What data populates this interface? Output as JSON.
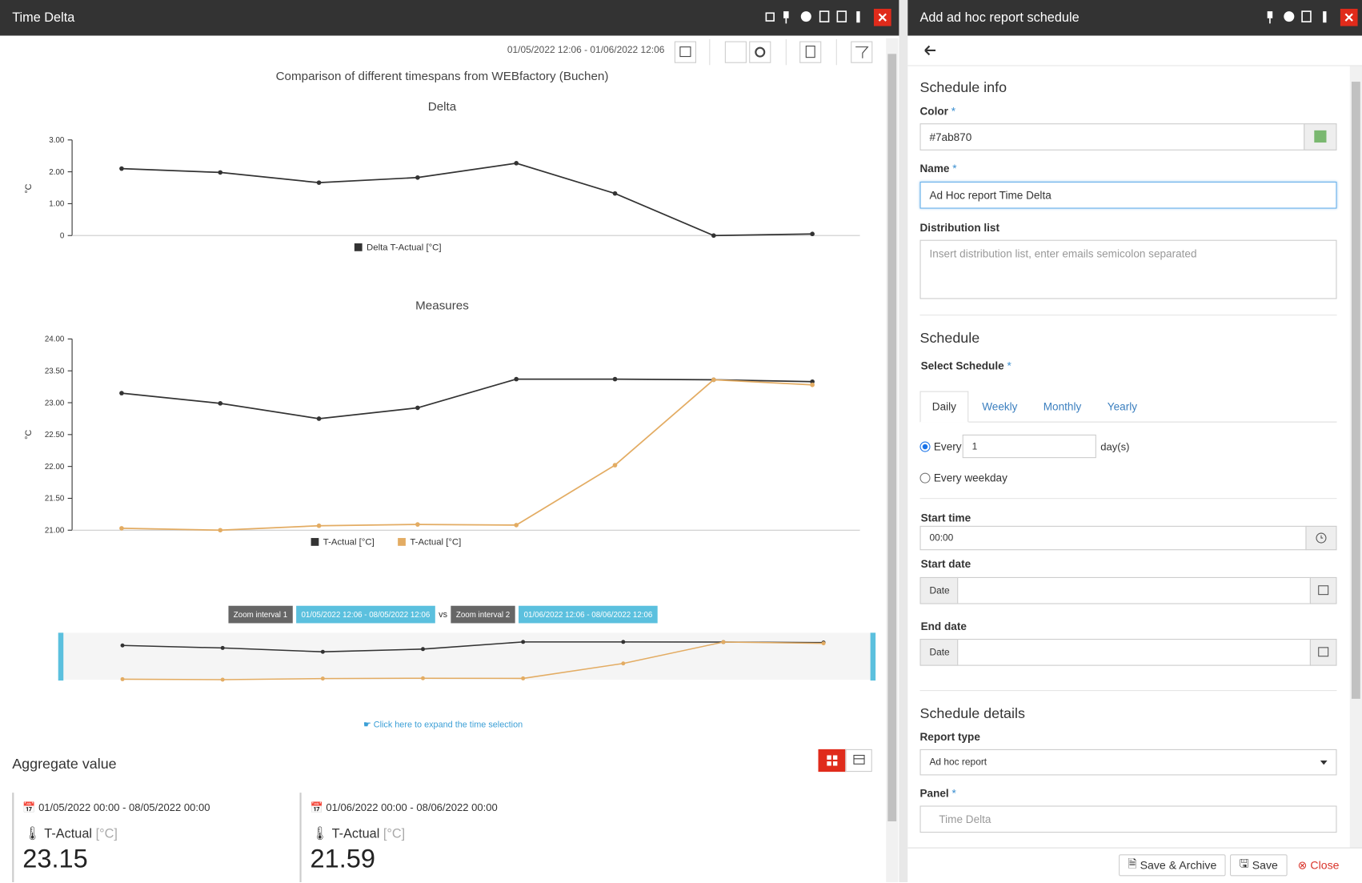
{
  "left_panel": {
    "title": "Time Delta",
    "date_range": "01/05/2022 12:06 - 01/06/2022 12:06",
    "chart_title": "Comparison of different timespans from WEBfactory (Buchen)",
    "charts": [
      {
        "type": "line",
        "title": "Delta",
        "y_label": "°C",
        "ylim": [
          0,
          3
        ],
        "yticks": [
          0,
          {
            "value": 1,
            "label": "1.00"
          },
          {
            "value": 2,
            "label": "2.00"
          },
          {
            "value": 3,
            "label": "3.00"
          }
        ],
        "series": [
          {
            "name": "Delta T-Actual [°C]",
            "color": "#333333",
            "values": [
              2.1,
              1.98,
              1.66,
              1.82,
              2.27,
              1.32,
              0.0,
              0.05
            ]
          }
        ]
      },
      {
        "type": "line",
        "title": "Measures",
        "y_label": "°C",
        "ylim": [
          21,
          24
        ],
        "yticks": [
          {
            "value": 21,
            "label": "21.00"
          },
          {
            "value": 21.5,
            "label": "21.50"
          },
          {
            "value": 22,
            "label": "22.00"
          },
          {
            "value": 22.5,
            "label": "22.50"
          },
          {
            "value": 23,
            "label": "23.00"
          },
          {
            "value": 23.5,
            "label": "23.50"
          },
          {
            "value": 24,
            "label": "24.00"
          }
        ],
        "series": [
          {
            "name": "T-Actual [°C]",
            "color": "#333333",
            "values": [
              23.15,
              22.99,
              22.75,
              22.92,
              23.37,
              23.37,
              23.36,
              23.33
            ]
          },
          {
            "name": "T-Actual [°C]",
            "color": "#e3ac63",
            "values": [
              21.03,
              21.0,
              21.07,
              21.09,
              21.08,
              22.02,
              23.36,
              23.28
            ]
          }
        ]
      }
    ],
    "zoom": {
      "label_1": "Zoom interval 1",
      "range_1": "01/05/2022 12:06 - 08/05/2022 12:06",
      "vs": "vs",
      "label_2": "Zoom interval 2",
      "range_2": "01/06/2022 12:06 - 08/06/2022 12:06"
    },
    "expand_hint": "Click here to expand the time selection",
    "aggregate": {
      "title": "Aggregate value",
      "cards": [
        {
          "range": "01/05/2022 00:00 - 08/05/2022 00:00",
          "name": "T-Actual",
          "unit": "[°C]",
          "value": 23.15
        },
        {
          "range": "01/06/2022 00:00 - 08/06/2022 00:00",
          "name": "T-Actual",
          "unit": "[°C]",
          "value": 21.59
        }
      ]
    }
  },
  "right_panel": {
    "title": "Add ad hoc report schedule",
    "required_mark": "*",
    "schedule_info": {
      "heading": "Schedule info",
      "color_label": "Color",
      "color_value": "#7ab870",
      "name_label": "Name",
      "name_value": "Ad Hoc report Time Delta",
      "distribution_label": "Distribution list",
      "distribution_placeholder": "Insert distribution list, enter emails semicolon separated"
    },
    "schedule": {
      "heading": "Schedule",
      "select_label": "Select Schedule",
      "tabs": [
        "Daily",
        "Weekly",
        "Monthly",
        "Yearly"
      ],
      "every_label": "Every",
      "every_value": "1",
      "every_unit": "day(s)",
      "weekday_label": "Every weekday",
      "start_time_label": "Start time",
      "start_time_value": "00:00",
      "start_date_label": "Start date",
      "date_addon": "Date",
      "end_date_label": "End date"
    },
    "details": {
      "heading": "Schedule details",
      "report_type_label": "Report type",
      "report_type_value": "Ad hoc report",
      "panel_label": "Panel",
      "panel_value": "Time Delta"
    },
    "buttons": [
      "Save & Archive",
      "Save",
      "Close"
    ]
  }
}
